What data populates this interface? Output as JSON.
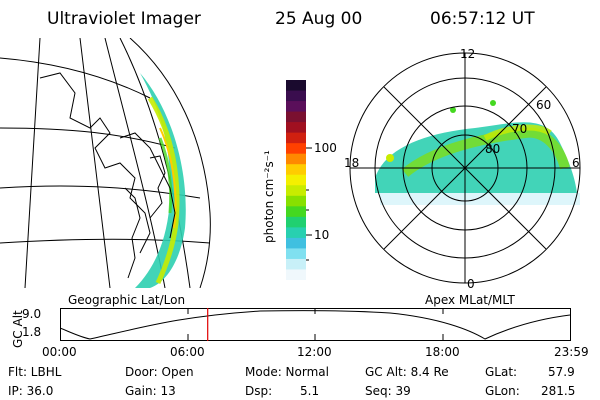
{
  "header": {
    "title": "Ultraviolet Imager",
    "date": "25 Aug 00",
    "time": "06:57:12 UT"
  },
  "geo_panel": {
    "label": "Geographic Lat/Lon"
  },
  "colorbar": {
    "unit_label": "photon cm⁻²s⁻¹",
    "ticks": [
      "100",
      "10"
    ],
    "colors": [
      "#1a0a2e",
      "#3a0d4e",
      "#5a0f5a",
      "#7a1030",
      "#a01020",
      "#d02010",
      "#ff4000",
      "#ff8800",
      "#ffcc00",
      "#f4f000",
      "#c8ec00",
      "#88e000",
      "#44d820",
      "#20d070",
      "#28d0b0",
      "#40c0e0",
      "#80e0f0",
      "#c8f0f8",
      "#f0f8fc"
    ]
  },
  "polar_panel": {
    "label": "Apex MLat/MLT",
    "mlt_labels": {
      "top": "12",
      "left": "18",
      "right": "6",
      "bottom": "0"
    },
    "lat_labels": [
      "60",
      "70",
      "80"
    ]
  },
  "altitude_plot": {
    "ylabel": "GC Alt",
    "y_ticks": [
      "9.0",
      "1.8"
    ],
    "x_ticks": [
      "00:00",
      "06:00",
      "12:00",
      "18:00",
      "23:59"
    ],
    "marker_time_hours": 6.95
  },
  "info": {
    "flt": "Flt: LBHL",
    "ip": "IP: 36.0",
    "door": "Door: Open",
    "gain": "Gain: 13",
    "mode": "Mode: Normal",
    "dsp_label": "Dsp:",
    "dsp_value": "5.1",
    "gc_alt": "GC Alt: 8.4 Re",
    "seq": "Seq: 39",
    "glat_label": "GLat:",
    "glat_value": "57.9",
    "glon_label": "GLon:",
    "glon_value": "281.5"
  }
}
